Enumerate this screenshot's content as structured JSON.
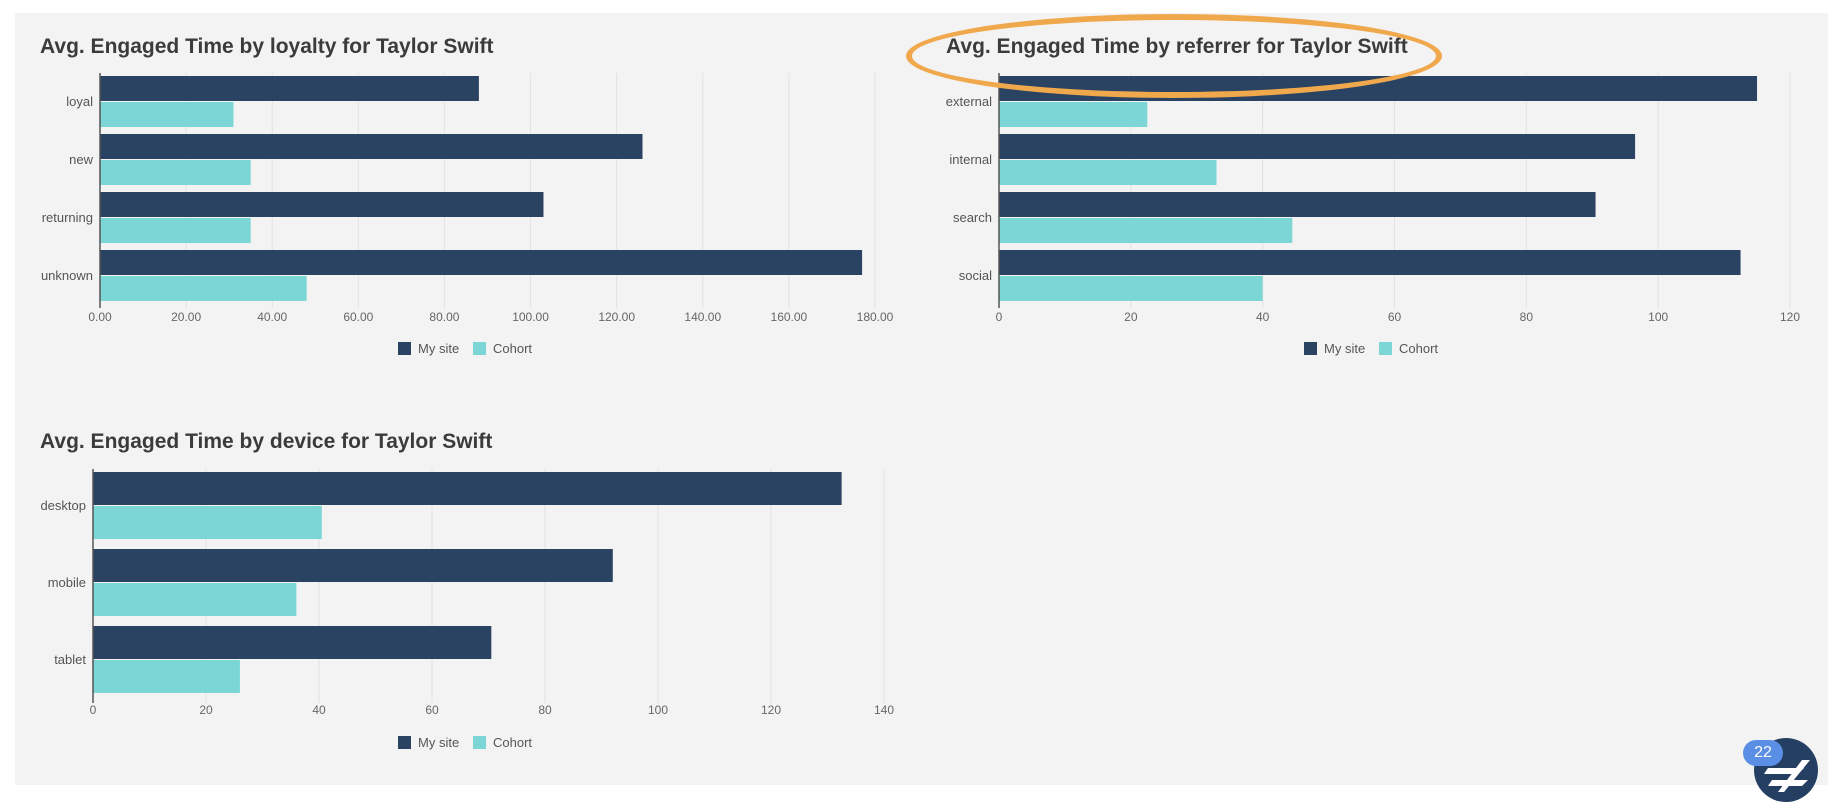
{
  "legend": {
    "mysite": "My site",
    "cohort": "Cohort"
  },
  "colors": {
    "mysite": "#2b4362",
    "cohort": "#7dd6d6",
    "annotation": "#f0a84d",
    "badge": "#5b8fe6"
  },
  "badge": {
    "page_number": "22"
  },
  "logo": {
    "icon": "brand-logo-icon"
  },
  "chart_data": [
    {
      "type": "bar",
      "orientation": "horizontal",
      "title": "Avg. Engaged Time by loyalty for Taylor Swift",
      "categories": [
        "loyal",
        "new",
        "returning",
        "unknown"
      ],
      "series": [
        {
          "name": "My site",
          "values": [
            88,
            126,
            103,
            177
          ]
        },
        {
          "name": "Cohort",
          "values": [
            31,
            35,
            35,
            48
          ]
        }
      ],
      "xlim": [
        0,
        180
      ],
      "xticks": [
        0,
        20,
        40,
        60,
        80,
        100,
        120,
        140,
        160,
        180
      ],
      "tick_decimals": 2,
      "grid": true,
      "legend_position": "bottom"
    },
    {
      "type": "bar",
      "orientation": "horizontal",
      "title": "Avg. Engaged Time by referrer for Taylor Swift",
      "categories": [
        "external",
        "internal",
        "search",
        "social"
      ],
      "series": [
        {
          "name": "My site",
          "values": [
            115,
            96.5,
            90.5,
            112.5
          ]
        },
        {
          "name": "Cohort",
          "values": [
            22.5,
            33,
            44.5,
            40
          ]
        }
      ],
      "xlim": [
        0,
        120
      ],
      "xticks": [
        0,
        20,
        40,
        60,
        80,
        100,
        120
      ],
      "tick_decimals": 0,
      "grid": true,
      "legend_position": "bottom"
    },
    {
      "type": "bar",
      "orientation": "horizontal",
      "title": "Avg. Engaged Time by device for Taylor Swift",
      "categories": [
        "desktop",
        "mobile",
        "tablet"
      ],
      "series": [
        {
          "name": "My site",
          "values": [
            132.5,
            92,
            70.5
          ]
        },
        {
          "name": "Cohort",
          "values": [
            40.5,
            36,
            26
          ]
        }
      ],
      "xlim": [
        0,
        140
      ],
      "xticks": [
        0,
        20,
        40,
        60,
        80,
        100,
        120,
        140
      ],
      "tick_decimals": 0,
      "grid": true,
      "legend_position": "bottom"
    }
  ]
}
